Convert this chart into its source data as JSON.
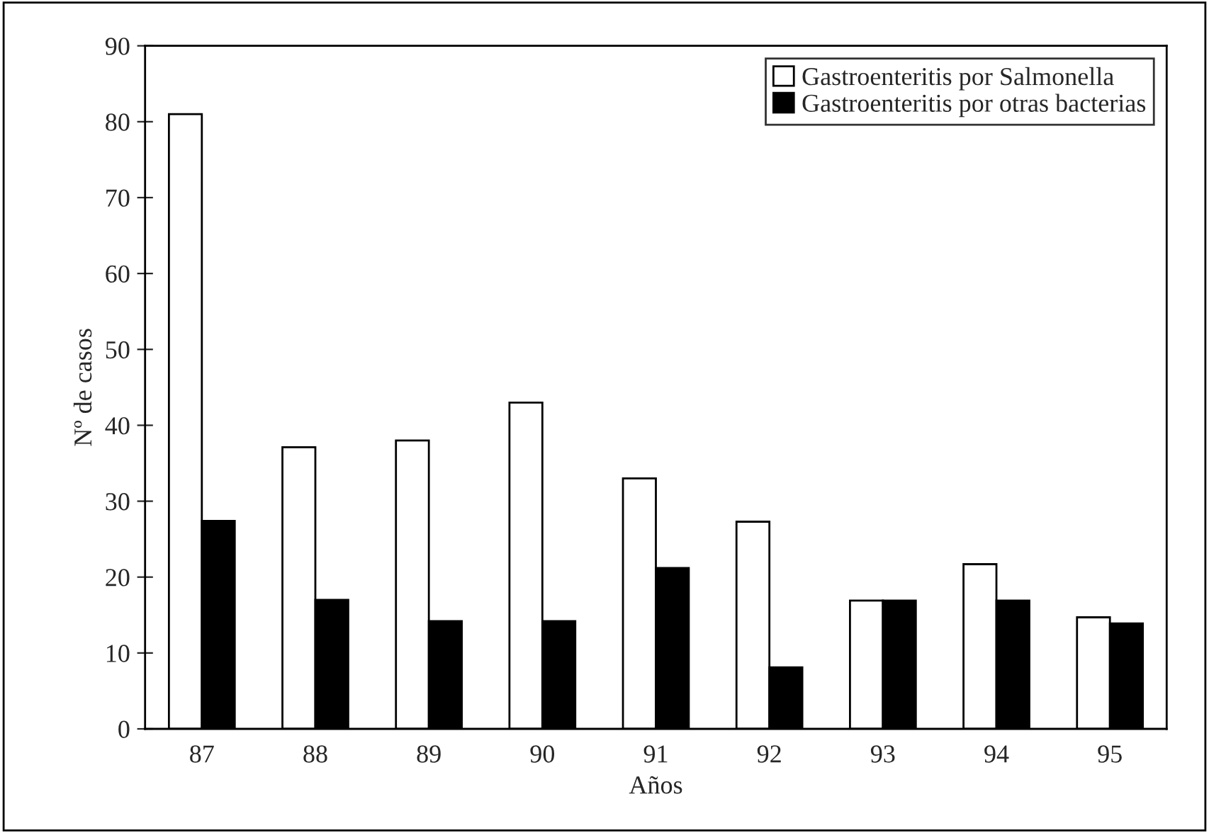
{
  "chart_data": {
    "type": "bar",
    "xlabel": "Años",
    "ylabel": "Nº de casos",
    "categories": [
      "87",
      "88",
      "89",
      "90",
      "91",
      "92",
      "93",
      "94",
      "95"
    ],
    "series": [
      {
        "name": "Gastroenteritis por Salmonella",
        "color": "#ffffff",
        "values": [
          81,
          37.1,
          38,
          43,
          33,
          27.3,
          16.9,
          21.7,
          14.7
        ]
      },
      {
        "name": "Gastroenteritis por otras bacterias",
        "color": "#000000",
        "values": [
          27.4,
          17,
          14.2,
          14.2,
          21.2,
          8.1,
          16.9,
          16.9,
          13.9
        ]
      }
    ],
    "ylim": [
      0,
      90
    ],
    "yticks": [
      0,
      10,
      20,
      30,
      40,
      50,
      60,
      70,
      80,
      90
    ],
    "legend": "top right",
    "grid": false
  }
}
